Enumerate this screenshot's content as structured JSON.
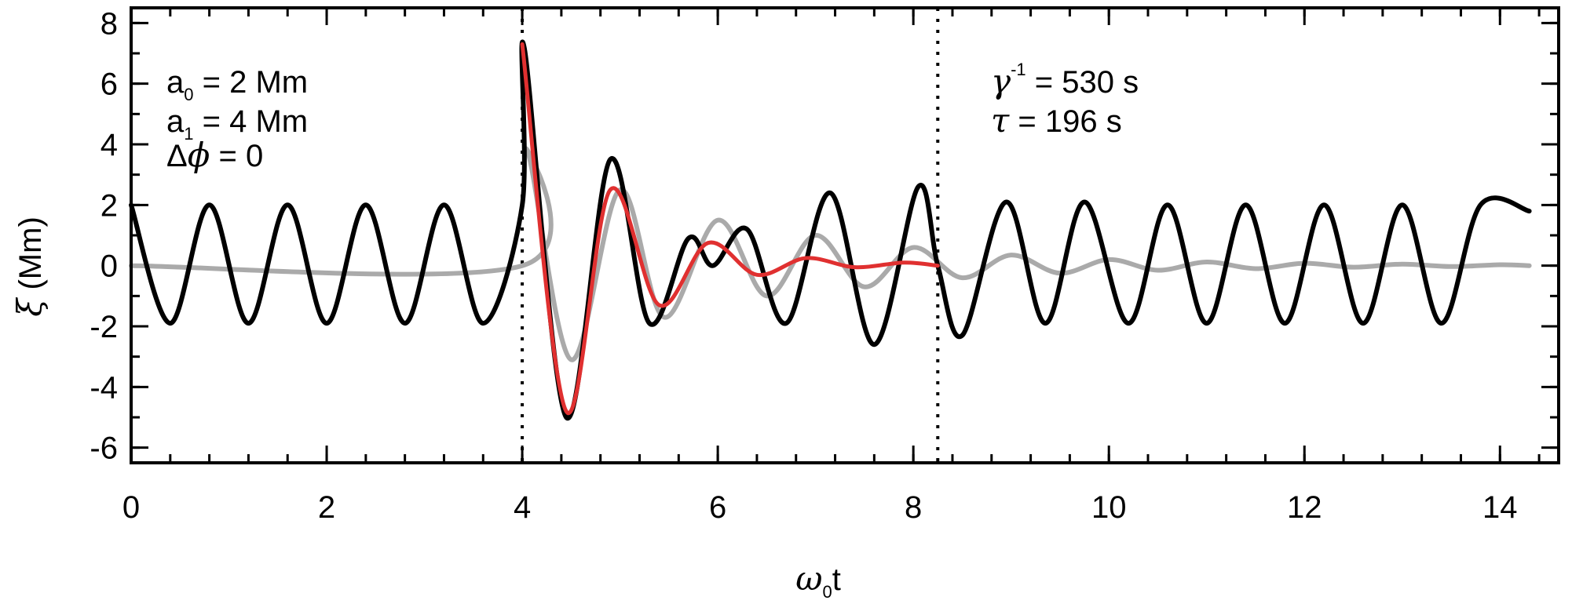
{
  "chart_data": {
    "type": "line",
    "xlabel_symbol": "ω",
    "xlabel_sub": "0",
    "xlabel_tail": "t",
    "ylabel_symbol": "ξ",
    "ylabel_tail": " (Mm)",
    "xlim": [
      0,
      14.6
    ],
    "ylim": [
      -6.5,
      8.5
    ],
    "xticks": [
      0,
      2,
      4,
      6,
      8,
      10,
      12,
      14
    ],
    "xtick_labels": [
      "0",
      "2",
      "4",
      "6",
      "8",
      "10",
      "12",
      "14"
    ],
    "yticks": [
      -6,
      -4,
      -2,
      0,
      2,
      4,
      6,
      8
    ],
    "ytick_labels": [
      "-6",
      "-4",
      "-2",
      "0",
      "2",
      "4",
      "6",
      "8"
    ],
    "vlines": [
      4.0,
      8.25
    ],
    "annotations_left": {
      "a0": "a",
      "a0_sub": "0",
      "a0_value": " = 2 Mm",
      "a1": "a",
      "a1_sub": "1",
      "a1_value": " = 4 Mm",
      "dphi_delta": "Δ",
      "dphi_symbol": "ϕ",
      "dphi_value": " = 0"
    },
    "annotations_right": {
      "gamma_symbol": "γ",
      "gamma_sup": "-1",
      "gamma_value": " = 530 s",
      "tau_symbol": "τ",
      "tau_value": " = 196 s"
    },
    "series": [
      {
        "color": "#000000",
        "x": [
          0,
          0.4,
          0.8,
          1.2,
          1.6,
          2.0,
          2.4,
          2.8,
          3.2,
          3.6,
          4.0,
          4.02,
          4.45,
          4.9,
          5.3,
          5.7,
          5.95,
          6.3,
          6.7,
          7.15,
          7.6,
          8.05,
          8.25,
          8.5,
          8.95,
          9.35,
          9.75,
          10.2,
          10.6,
          11.0,
          11.4,
          11.8,
          12.2,
          12.6,
          13.0,
          13.4,
          13.8,
          14.3
        ],
        "y": [
          2.0,
          -1.9,
          2.0,
          -1.9,
          2.0,
          -1.9,
          2.0,
          -1.9,
          2.0,
          -1.9,
          2.0,
          7.2,
          -5.0,
          3.5,
          -1.9,
          0.9,
          0.0,
          1.2,
          -1.9,
          2.4,
          -2.6,
          2.6,
          0.0,
          -2.3,
          2.1,
          -1.9,
          2.1,
          -1.9,
          2.0,
          -1.9,
          2.0,
          -1.9,
          2.0,
          -1.9,
          2.0,
          -1.9,
          2.0,
          1.8
        ]
      },
      {
        "color": "#aaaaaa",
        "x": [
          0,
          4.0,
          4.05,
          4.5,
          5.0,
          5.45,
          6.0,
          6.5,
          7.0,
          7.5,
          8.0,
          8.5,
          9.0,
          9.5,
          10.0,
          10.5,
          11.0,
          11.5,
          12.0,
          12.5,
          13.0,
          13.5,
          14.0,
          14.3
        ],
        "y": [
          0,
          0,
          3.8,
          -3.1,
          2.5,
          -1.7,
          1.5,
          -1.0,
          1.0,
          -0.7,
          0.6,
          -0.4,
          0.35,
          -0.25,
          0.2,
          -0.15,
          0.12,
          -0.1,
          0.08,
          -0.05,
          0.05,
          -0.03,
          0.03,
          0.0
        ]
      },
      {
        "color": "#e03030",
        "x": [
          4.0,
          4.45,
          4.9,
          5.4,
          5.9,
          6.4,
          6.9,
          7.4,
          7.9,
          8.25
        ],
        "y": [
          7.3,
          -4.8,
          2.5,
          -1.3,
          0.75,
          -0.3,
          0.25,
          -0.05,
          0.1,
          0.0
        ]
      }
    ]
  }
}
